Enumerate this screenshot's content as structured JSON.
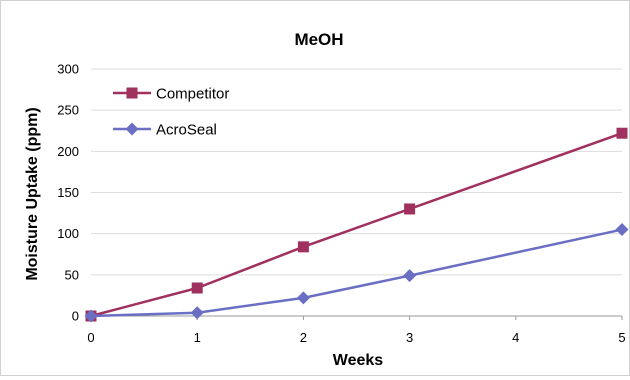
{
  "chart_data": {
    "type": "line",
    "title": "MeOH",
    "xlabel": "Weeks",
    "ylabel": "Moisture Uptake (ppm)",
    "x": [
      0,
      1,
      2,
      3,
      4,
      5
    ],
    "xlim": [
      0,
      5
    ],
    "ylim": [
      0,
      300
    ],
    "yticks": [
      0,
      50,
      100,
      150,
      200,
      250,
      300
    ],
    "xticks": [
      0,
      1,
      2,
      3,
      4,
      5
    ],
    "grid": "horizontal",
    "legend_position": "top-left",
    "series": [
      {
        "name": "Competitor",
        "marker": "square",
        "color": "#a0305e",
        "points": [
          [
            0,
            0
          ],
          [
            1,
            34
          ],
          [
            2,
            84
          ],
          [
            3,
            130
          ],
          [
            5,
            222
          ]
        ]
      },
      {
        "name": "AcroSeal",
        "marker": "diamond",
        "color": "#6a6fc4",
        "points": [
          [
            0,
            0
          ],
          [
            1,
            4
          ],
          [
            2,
            22
          ],
          [
            3,
            49
          ],
          [
            5,
            105
          ]
        ]
      }
    ]
  }
}
